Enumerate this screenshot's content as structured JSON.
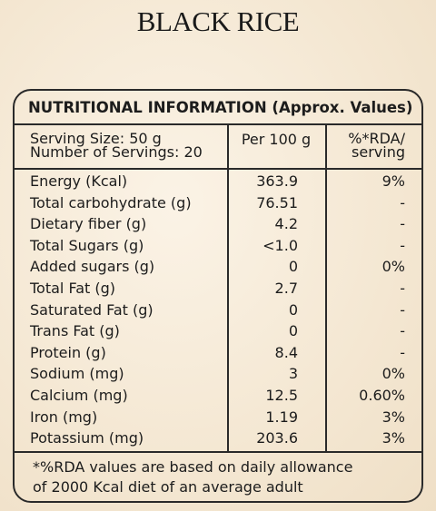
{
  "title": "BLACK RICE",
  "table": {
    "header": "NUTRITIONAL INFORMATION (Approx. Values)",
    "serving_size": "Serving Size: 50 g",
    "servings_count": "Number of Servings: 20",
    "per_100g_header": "Per 100 g",
    "rda_header": [
      "%*RDA/",
      "serving"
    ],
    "rows": [
      [
        "Energy (Kcal)",
        "363.9",
        "9%"
      ],
      [
        "Total carbohydrate (g)",
        "76.51",
        "-"
      ],
      [
        "Dietary fiber (g)",
        "4.2",
        "-"
      ],
      [
        "Total Sugars (g)",
        "<1.0",
        "-"
      ],
      [
        "Added sugars (g)",
        "0",
        "0%"
      ],
      [
        "Total Fat (g)",
        "2.7",
        "-"
      ],
      [
        "Saturated Fat (g)",
        "0",
        "-"
      ],
      [
        "Trans Fat (g)",
        "0",
        "-"
      ],
      [
        "Protein (g)",
        "8.4",
        "-"
      ],
      [
        "Sodium (mg)",
        "3",
        "0%"
      ],
      [
        "Calcium (mg)",
        "12.5",
        "0.60%"
      ],
      [
        "Iron (mg)",
        "1.19",
        "3%"
      ],
      [
        "Potassium (mg)",
        "203.6",
        "3%"
      ]
    ],
    "footnote": [
      "*%RDA values are based on daily allowance",
      "of 2000 Kcal diet of an average adult"
    ]
  }
}
